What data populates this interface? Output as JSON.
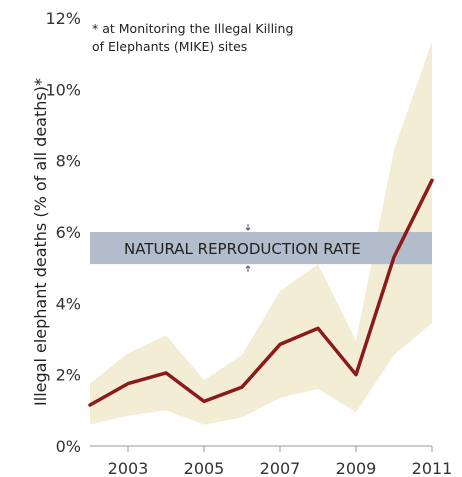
{
  "chart_data": {
    "type": "line",
    "title": "",
    "xlabel": "",
    "ylabel": "Illegal elephant deaths  (% of all deaths)*",
    "note_lines": [
      "* at Monitoring the Illegal Killing",
      "of Elephants (MIKE) sites"
    ],
    "xlim": [
      2002,
      2011
    ],
    "ylim": [
      0,
      12
    ],
    "xticks": [
      {
        "value": 2003,
        "label": "2003"
      },
      {
        "value": 2005,
        "label": "2005"
      },
      {
        "value": 2007,
        "label": "2007"
      },
      {
        "value": 2009,
        "label": "2009"
      },
      {
        "value": 2011,
        "label": "2011"
      }
    ],
    "yticks": [
      {
        "value": 0,
        "label": "0%"
      },
      {
        "value": 2,
        "label": "2%"
      },
      {
        "value": 4,
        "label": "4%"
      },
      {
        "value": 6,
        "label": "6%"
      },
      {
        "value": 8,
        "label": "8%"
      },
      {
        "value": 10,
        "label": "10%"
      },
      {
        "value": 12,
        "label": "12%"
      }
    ],
    "series": [
      {
        "x": [
          2002,
          2003,
          2004,
          2005,
          2006,
          2007,
          2008,
          2009,
          2010,
          2011
        ],
        "values": [
          1.15,
          1.75,
          2.05,
          1.25,
          1.65,
          2.85,
          3.3,
          2.0,
          5.3,
          7.45
        ],
        "lower": [
          0.6,
          0.85,
          1.0,
          0.6,
          0.8,
          1.35,
          1.6,
          0.95,
          2.55,
          3.45
        ],
        "upper": [
          1.75,
          2.6,
          3.1,
          1.85,
          2.55,
          4.35,
          5.1,
          2.95,
          8.3,
          11.35
        ]
      }
    ],
    "reference_band": {
      "label": "NATURAL REPRODUCTION RATE",
      "low": 5.1,
      "high": 6.0
    },
    "colors": {
      "line": "#8b1a1a",
      "confidence_band": "#f3edd6",
      "reference_band": "#b3bccb",
      "text": "#222222"
    },
    "grid": false,
    "legend": "none"
  }
}
